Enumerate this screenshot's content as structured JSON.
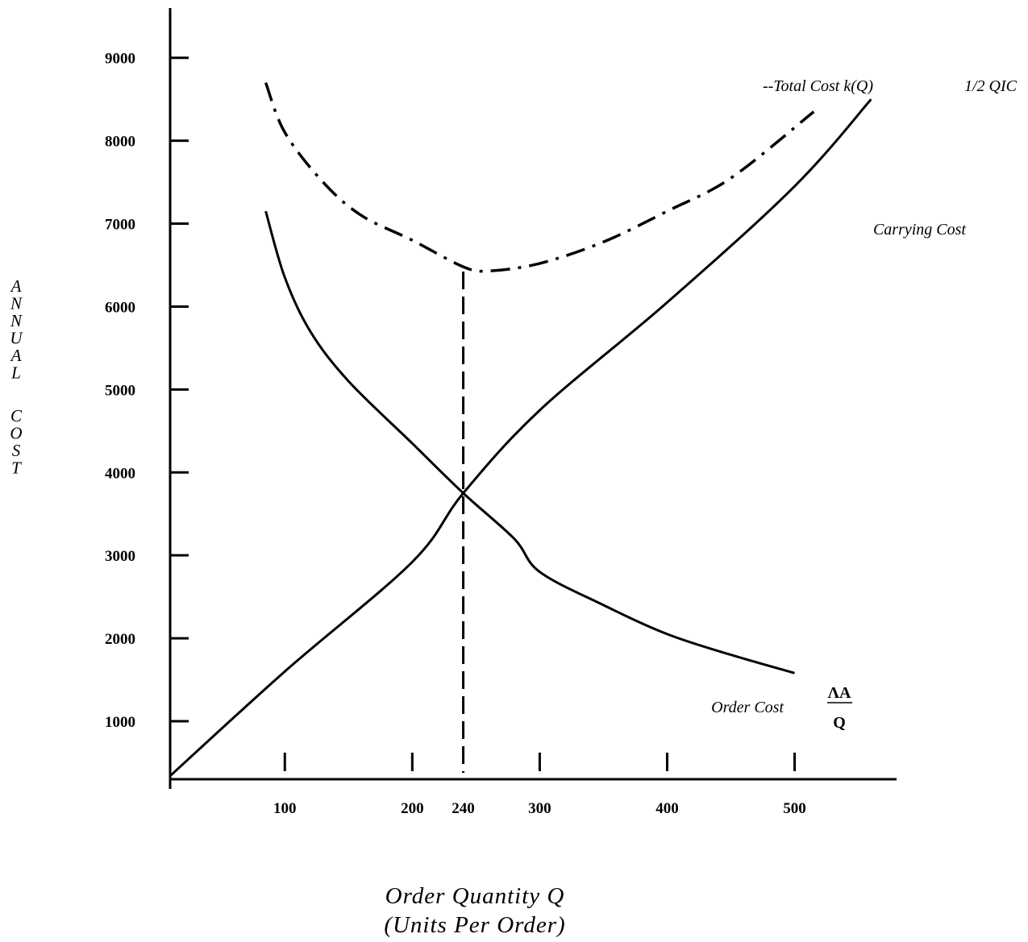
{
  "chart_data": {
    "type": "line",
    "title": "",
    "xlabel": "Order Quantity Q",
    "xlabel_sub": "(Units Per Order)",
    "ylabel": "ANNUAL COST",
    "xlim": [
      10,
      580
    ],
    "ylim": [
      300,
      9600
    ],
    "x_ticks": [
      100,
      200,
      240,
      300,
      400,
      500
    ],
    "x_tick_labels": [
      "100",
      "200",
      "240",
      "300",
      "400",
      "500"
    ],
    "y_ticks": [
      1000,
      2000,
      3000,
      4000,
      5000,
      6000,
      7000,
      8000,
      9000
    ],
    "y_tick_labels": [
      "1000",
      "2000",
      "3000",
      "4000",
      "5000",
      "6000",
      "7000",
      "8000",
      "9000"
    ],
    "grid": false,
    "series": [
      {
        "name": "Carrying Cost",
        "formula_label": "1/2 QIC",
        "style": "solid",
        "x": [
          10,
          100,
          200,
          240,
          300,
          400,
          500,
          560
        ],
        "y": [
          340,
          1600,
          2920,
          3750,
          4750,
          6050,
          7450,
          8500
        ]
      },
      {
        "name": "Order Cost",
        "formula_num": "ΛA",
        "formula_den": "Q",
        "style": "solid",
        "x": [
          85,
          100,
          120,
          150,
          200,
          240,
          280,
          300,
          350,
          400,
          450,
          500
        ],
        "y": [
          7150,
          6350,
          5700,
          5100,
          4350,
          3750,
          3200,
          2800,
          2400,
          2050,
          1800,
          1580
        ]
      },
      {
        "name": "--Total Cost k(Q)",
        "style": "dash-dot",
        "x": [
          85,
          100,
          130,
          160,
          200,
          240,
          260,
          300,
          350,
          400,
          450,
          515
        ],
        "y": [
          8700,
          8100,
          7500,
          7100,
          6800,
          6480,
          6430,
          6520,
          6780,
          7150,
          7550,
          8350
        ]
      }
    ],
    "vertical_marker": {
      "x": 240,
      "y_top": 6480,
      "style": "dashed"
    }
  }
}
